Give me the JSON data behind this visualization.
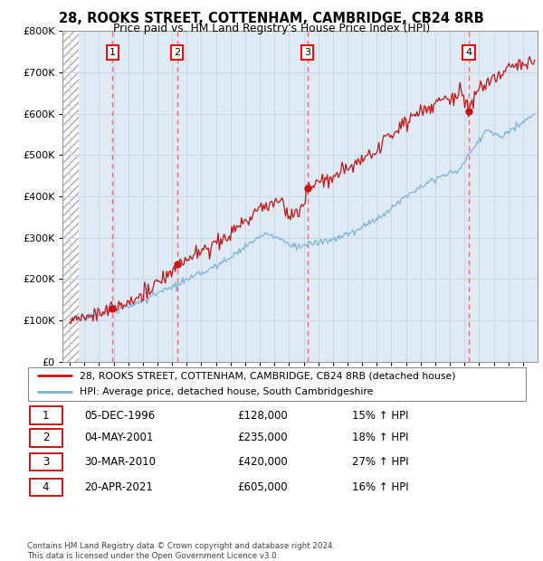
{
  "title1": "28, ROOKS STREET, COTTENHAM, CAMBRIDGE, CB24 8RB",
  "title2": "Price paid vs. HM Land Registry's House Price Index (HPI)",
  "legend_line1": "28, ROOKS STREET, COTTENHAM, CAMBRIDGE, CB24 8RB (detached house)",
  "legend_line2": "HPI: Average price, detached house, South Cambridgeshire",
  "footer": "Contains HM Land Registry data © Crown copyright and database right 2024.\nThis data is licensed under the Open Government Licence v3.0.",
  "transactions": [
    {
      "num": 1,
      "date": "05-DEC-1996",
      "price": "£128,000",
      "pct": "15% ↑ HPI",
      "year_x": 1996.92,
      "price_val": 128000
    },
    {
      "num": 2,
      "date": "04-MAY-2001",
      "price": "£235,000",
      "pct": "18% ↑ HPI",
      "year_x": 2001.34,
      "price_val": 235000
    },
    {
      "num": 3,
      "date": "30-MAR-2010",
      "price": "£420,000",
      "pct": "27% ↑ HPI",
      "year_x": 2010.25,
      "price_val": 420000
    },
    {
      "num": 4,
      "date": "20-APR-2021",
      "price": "£605,000",
      "pct": "16% ↑ HPI",
      "year_x": 2021.3,
      "price_val": 605000
    }
  ],
  "ylim": [
    0,
    800000
  ],
  "xlim_start": 1993.5,
  "xlim_end": 2026.0,
  "hpi_color": "#7ab0d4",
  "price_color": "#cc1111",
  "grid_color": "#c8daea",
  "plot_bg_color": "#deeaf4",
  "red_dashed_color": "#e87070",
  "hatch_start": 1993.5,
  "hatch_end": 1994.6
}
